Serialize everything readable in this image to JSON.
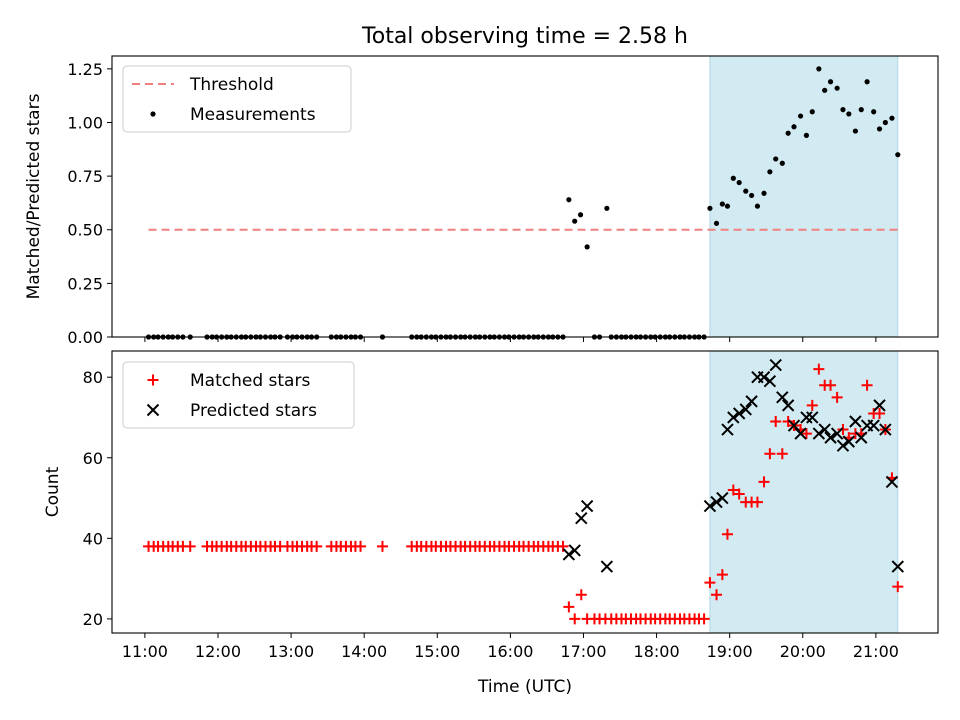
{
  "chart_data": {
    "type": "scatter",
    "title": "Total observing time = 2.58 h",
    "xlabel": "Time (UTC)",
    "x_ticks": [
      "11:00",
      "12:00",
      "13:00",
      "14:00",
      "15:00",
      "16:00",
      "17:00",
      "18:00",
      "19:00",
      "20:00",
      "21:00"
    ],
    "x_range_hours": [
      10.55,
      21.85
    ],
    "highlight_span_hours": [
      18.73,
      21.3
    ],
    "colors": {
      "threshold": "#f08080",
      "measurement": "#000000",
      "matched": "#ff0000",
      "predicted": "#000000",
      "highlight": "#add8e6"
    },
    "panels": [
      {
        "ylabel": "Matched/Predicted stars",
        "ylim": [
          0,
          1.31
        ],
        "y_ticks": [
          "0.00",
          "0.25",
          "0.50",
          "0.75",
          "1.00",
          "1.25"
        ],
        "legend": [
          "Threshold",
          "Measurements"
        ],
        "threshold": {
          "value": 0.5,
          "x_range_hours": [
            11.05,
            21.3
          ]
        },
        "measurements": {
          "zero_x": [
            11.05,
            11.12,
            11.18,
            11.25,
            11.32,
            11.38,
            11.45,
            11.52,
            11.62,
            11.85,
            11.92,
            11.98,
            12.05,
            12.12,
            12.18,
            12.25,
            12.32,
            12.38,
            12.45,
            12.52,
            12.58,
            12.65,
            12.72,
            12.78,
            12.85,
            12.95,
            13.02,
            13.08,
            13.15,
            13.22,
            13.28,
            13.35,
            13.55,
            13.62,
            13.68,
            13.75,
            13.82,
            13.88,
            13.95,
            14.25,
            14.65,
            14.72,
            14.78,
            14.85,
            14.92,
            14.98,
            15.05,
            15.12,
            15.18,
            15.25,
            15.32,
            15.38,
            15.45,
            15.52,
            15.58,
            15.65,
            15.72,
            15.78,
            15.85,
            15.92,
            15.98,
            16.05,
            16.12,
            16.18,
            16.25,
            16.32,
            16.38,
            16.45,
            16.52,
            16.58,
            16.65,
            16.72,
            17.15,
            17.22,
            17.38,
            17.45,
            17.52,
            17.58,
            17.65,
            17.72,
            17.78,
            17.85,
            17.92,
            17.98,
            18.05,
            18.12,
            18.18,
            18.25,
            18.32,
            18.38,
            18.45,
            18.52,
            18.58,
            18.65
          ],
          "points": [
            [
              16.8,
              0.64
            ],
            [
              16.88,
              0.54
            ],
            [
              16.96,
              0.57
            ],
            [
              17.05,
              0.42
            ],
            [
              17.32,
              0.6
            ],
            [
              18.73,
              0.6
            ],
            [
              18.82,
              0.53
            ],
            [
              18.9,
              0.62
            ],
            [
              18.97,
              0.61
            ],
            [
              19.05,
              0.74
            ],
            [
              19.13,
              0.72
            ],
            [
              19.22,
              0.68
            ],
            [
              19.3,
              0.66
            ],
            [
              19.38,
              0.61
            ],
            [
              19.47,
              0.67
            ],
            [
              19.55,
              0.77
            ],
            [
              19.63,
              0.83
            ],
            [
              19.72,
              0.81
            ],
            [
              19.8,
              0.95
            ],
            [
              19.88,
              0.98
            ],
            [
              19.97,
              1.03
            ],
            [
              20.05,
              0.94
            ],
            [
              20.13,
              1.05
            ],
            [
              20.22,
              1.25
            ],
            [
              20.3,
              1.15
            ],
            [
              20.38,
              1.19
            ],
            [
              20.47,
              1.16
            ],
            [
              20.55,
              1.06
            ],
            [
              20.63,
              1.04
            ],
            [
              20.72,
              0.96
            ],
            [
              20.8,
              1.06
            ],
            [
              20.88,
              1.19
            ],
            [
              20.97,
              1.05
            ],
            [
              21.05,
              0.97
            ],
            [
              21.13,
              1.0
            ],
            [
              21.22,
              1.02
            ],
            [
              21.3,
              0.85
            ]
          ]
        }
      },
      {
        "ylabel": "Count",
        "ylim": [
          16.5,
          86.5
        ],
        "y_ticks": [
          "20",
          "40",
          "60",
          "80"
        ],
        "legend": [
          "Matched stars",
          "Predicted stars"
        ],
        "matched_38_x": [
          11.05,
          11.12,
          11.18,
          11.25,
          11.32,
          11.38,
          11.45,
          11.52,
          11.62,
          11.85,
          11.92,
          11.98,
          12.05,
          12.12,
          12.18,
          12.25,
          12.32,
          12.38,
          12.45,
          12.52,
          12.58,
          12.65,
          12.72,
          12.78,
          12.85,
          12.95,
          13.02,
          13.08,
          13.15,
          13.22,
          13.28,
          13.35,
          13.55,
          13.62,
          13.68,
          13.75,
          13.82,
          13.88,
          13.95,
          14.25,
          14.65,
          14.72,
          14.78,
          14.85,
          14.92,
          14.98,
          15.05,
          15.12,
          15.18,
          15.25,
          15.32,
          15.38,
          15.45,
          15.52,
          15.58,
          15.65,
          15.72,
          15.78,
          15.85,
          15.92,
          15.98,
          16.05,
          16.12,
          16.18,
          16.25,
          16.32,
          16.38,
          16.45,
          16.52,
          16.58,
          16.65,
          16.72
        ],
        "matched_20_x": [
          17.15,
          17.22,
          17.3,
          17.38,
          17.45,
          17.52,
          17.58,
          17.65,
          17.72,
          17.78,
          17.85,
          17.92,
          17.98,
          18.05,
          18.12,
          18.18,
          18.25,
          18.32,
          18.38,
          18.45,
          18.52,
          18.58,
          18.65
        ],
        "matched_points": [
          [
            16.8,
            23
          ],
          [
            16.88,
            20
          ],
          [
            16.97,
            26
          ],
          [
            17.05,
            20
          ],
          [
            18.73,
            29
          ],
          [
            18.82,
            26
          ],
          [
            18.9,
            31
          ],
          [
            18.97,
            41
          ],
          [
            19.05,
            52
          ],
          [
            19.13,
            51
          ],
          [
            19.22,
            49
          ],
          [
            19.3,
            49
          ],
          [
            19.38,
            49
          ],
          [
            19.47,
            54
          ],
          [
            19.55,
            61
          ],
          [
            19.63,
            69
          ],
          [
            19.72,
            61
          ],
          [
            19.8,
            69
          ],
          [
            19.88,
            68
          ],
          [
            19.97,
            67
          ],
          [
            20.05,
            66
          ],
          [
            20.13,
            73
          ],
          [
            20.22,
            82
          ],
          [
            20.3,
            78
          ],
          [
            20.38,
            78
          ],
          [
            20.47,
            75
          ],
          [
            20.55,
            67
          ],
          [
            20.63,
            65
          ],
          [
            20.72,
            66
          ],
          [
            20.8,
            66
          ],
          [
            20.88,
            78
          ],
          [
            20.97,
            71
          ],
          [
            21.05,
            71
          ],
          [
            21.13,
            67
          ],
          [
            21.22,
            55
          ],
          [
            21.3,
            28
          ]
        ],
        "predicted_points": [
          [
            16.8,
            36
          ],
          [
            16.88,
            37
          ],
          [
            16.97,
            45
          ],
          [
            17.05,
            48
          ],
          [
            17.32,
            33
          ],
          [
            18.73,
            48
          ],
          [
            18.82,
            49
          ],
          [
            18.9,
            50
          ],
          [
            18.97,
            67
          ],
          [
            19.05,
            70
          ],
          [
            19.13,
            71
          ],
          [
            19.22,
            72
          ],
          [
            19.3,
            74
          ],
          [
            19.38,
            80
          ],
          [
            19.47,
            80
          ],
          [
            19.55,
            79
          ],
          [
            19.63,
            83
          ],
          [
            19.72,
            75
          ],
          [
            19.8,
            73
          ],
          [
            19.88,
            68
          ],
          [
            19.97,
            66
          ],
          [
            20.05,
            70
          ],
          [
            20.13,
            70
          ],
          [
            20.22,
            66
          ],
          [
            20.3,
            67
          ],
          [
            20.38,
            65
          ],
          [
            20.47,
            66
          ],
          [
            20.55,
            63
          ],
          [
            20.63,
            64
          ],
          [
            20.72,
            69
          ],
          [
            20.8,
            65
          ],
          [
            20.88,
            68
          ],
          [
            20.97,
            68
          ],
          [
            21.05,
            73
          ],
          [
            21.13,
            67
          ],
          [
            21.22,
            54
          ],
          [
            21.3,
            33
          ]
        ]
      }
    ]
  }
}
